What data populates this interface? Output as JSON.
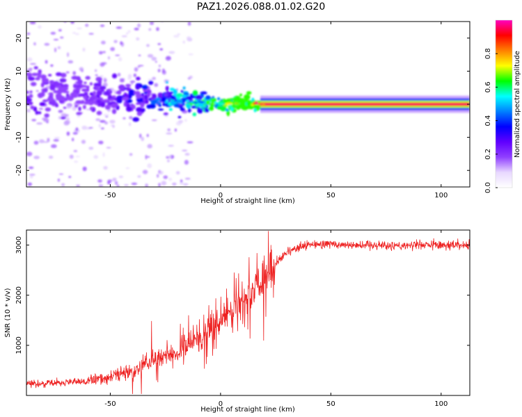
{
  "figure_title": "PAZ1.2026.088.01.02.G20",
  "chart_data": [
    {
      "type": "heatmap",
      "title": "",
      "xlabel": "Height of straight line (km)",
      "ylabel": "Frequency (Hz)",
      "xlim": [
        -88,
        113
      ],
      "ylim": [
        -25,
        25
      ],
      "xticks": [
        -50,
        0,
        50,
        100
      ],
      "xtick_labels": [
        "-50",
        "0",
        "50",
        "100"
      ],
      "yticks": [
        -20,
        -10,
        0,
        10,
        20
      ],
      "ytick_labels": [
        "-20",
        "-10",
        "0",
        "10",
        "20"
      ],
      "colorbar": {
        "label": "Normalized spectral amplitude",
        "range": [
          0,
          1
        ],
        "ticks": [
          0.0,
          0.2,
          0.4,
          0.6,
          0.8
        ],
        "tick_labels": [
          "0.0",
          "0.2",
          "0.4",
          "0.6",
          "0.8"
        ],
        "colors": [
          "#ffffff",
          "#e8d8ff",
          "#9040ff",
          "#6000ff",
          "#0000ff",
          "#0080ff",
          "#00ffff",
          "#00ff00",
          "#ffff00",
          "#ff8000",
          "#ff0000",
          "#ff00c0"
        ]
      },
      "ridge": {
        "x": [
          -88,
          -70,
          -50,
          -30,
          -15,
          0,
          20,
          40,
          60,
          80,
          100,
          113
        ],
        "frequency_hz": [
          5.5,
          3.5,
          2.5,
          1.5,
          1.0,
          0.3,
          0.0,
          0.0,
          0.0,
          0.0,
          0.0,
          0.0
        ],
        "amplitude": [
          0.2,
          0.15,
          0.2,
          0.3,
          0.45,
          0.6,
          0.9,
          1.0,
          1.0,
          1.0,
          1.0,
          1.0
        ]
      }
    },
    {
      "type": "line",
      "title": "",
      "xlabel": "Height of straight line (km)",
      "ylabel": "SNR (10 * v/v)",
      "xlim": [
        -88,
        113
      ],
      "ylim": [
        0,
        3300
      ],
      "xticks": [
        -50,
        0,
        50,
        100
      ],
      "xtick_labels": [
        "-50",
        "0",
        "50",
        "100"
      ],
      "yticks": [
        1000,
        2000,
        3000
      ],
      "ytick_labels": [
        "1000",
        "2000",
        "3000"
      ],
      "series": [
        {
          "name": "SNR",
          "color": "#ee2222",
          "x": [
            -88,
            -80,
            -70,
            -60,
            -50,
            -40,
            -30,
            -20,
            -10,
            0,
            10,
            20,
            25,
            30,
            40,
            50,
            60,
            70,
            80,
            90,
            100,
            113
          ],
          "values": [
            250,
            230,
            260,
            280,
            380,
            480,
            700,
            850,
            1150,
            1500,
            1900,
            2400,
            2650,
            2850,
            3000,
            3020,
            3000,
            3010,
            2990,
            3000,
            3010,
            2990
          ]
        }
      ]
    }
  ]
}
